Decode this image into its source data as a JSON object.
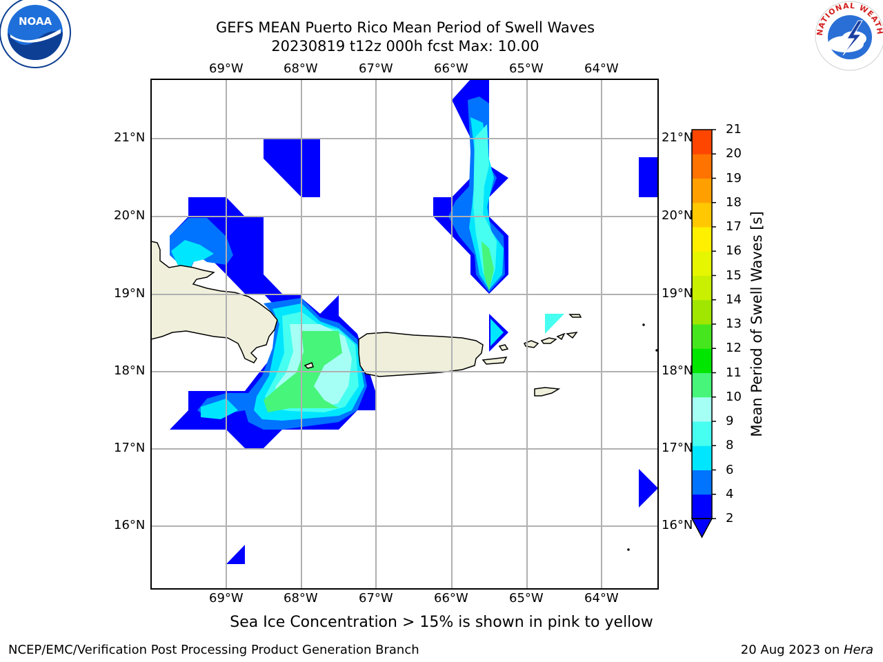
{
  "title": {
    "line1": "GEFS MEAN Puerto Rico Mean Period of Swell Waves",
    "line2": "20230819 t12z 000h fcst   Max: 10.00"
  },
  "logos": {
    "noaa_text": "NOAA",
    "nws_text": "NATIONAL WEATHER SERVICE"
  },
  "map": {
    "lon_labels": [
      "69°W",
      "68°W",
      "67°W",
      "66°W",
      "65°W",
      "64°W"
    ],
    "lat_labels": [
      "21°N",
      "20°N",
      "19°N",
      "18°N",
      "17°N",
      "16°N"
    ],
    "land_color": "#efefdb",
    "grid_color": "#b0b0b0"
  },
  "colorbar": {
    "label": "Mean Period of Swell Waves [s]",
    "ticks": [
      "2",
      "4",
      "6",
      "8",
      "9",
      "10",
      "11",
      "12",
      "13",
      "14",
      "15",
      "16",
      "17",
      "18",
      "19",
      "20",
      "21"
    ],
    "colors": [
      "#0000ff",
      "#0073ff",
      "#00e6ff",
      "#46fff0",
      "#a6fff5",
      "#46f57a",
      "#00e600",
      "#46e61e",
      "#a0e600",
      "#c8f000",
      "#e6f500",
      "#fff000",
      "#ffc800",
      "#ffa000",
      "#ff7300",
      "#ff4600",
      "#ff0000"
    ],
    "extend_color": "#0000ff"
  },
  "note": "Sea Ice Concentration > 15% is shown in pink to yellow",
  "footer": {
    "left": "NCEP/EMC/Verification Post Processing Product Generation Branch",
    "right_date": "20 Aug 2023 on ",
    "right_machine": "Hera"
  }
}
